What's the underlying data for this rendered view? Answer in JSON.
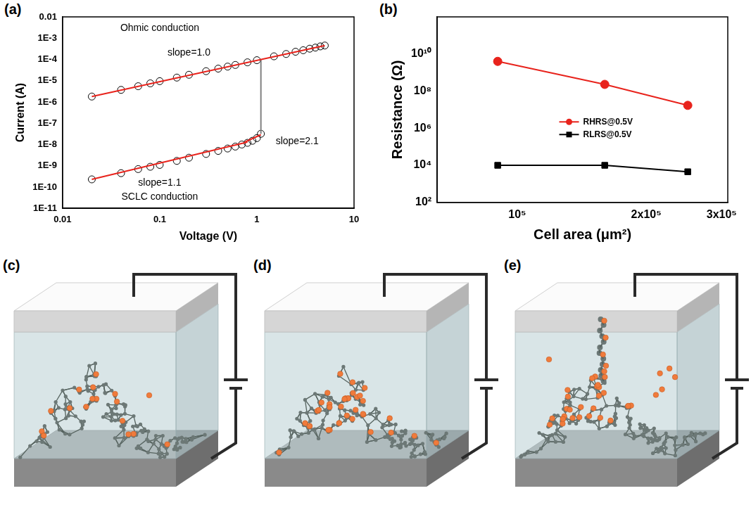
{
  "chart_data": [
    {
      "panel": "(a)",
      "type": "scatter",
      "x_label": "Voltage (V)",
      "y_label": "Current (A)",
      "log": true,
      "grid": false,
      "xlim": [
        0.01,
        10
      ],
      "xticks": [
        0.01,
        0.1,
        1,
        10
      ],
      "ylim": [
        1e-11,
        0.01
      ],
      "yticks": [
        {
          "value": 1e-11,
          "label": "1E-11"
        },
        {
          "value": 1e-10,
          "label": "1E-10"
        },
        {
          "value": 1e-09,
          "label": "1E-9"
        },
        {
          "value": 1e-08,
          "label": "1E-8"
        },
        {
          "value": 1e-07,
          "label": "1E-7"
        },
        {
          "value": 1e-06,
          "label": "1E-6"
        },
        {
          "value": 1e-05,
          "label": "1E-5"
        },
        {
          "value": 0.0001,
          "label": "1E-4"
        },
        {
          "value": 0.001,
          "label": "1E-3"
        },
        0.01
      ],
      "series": [
        {
          "type": "scatter",
          "marker": "circle-open",
          "color": "#000000",
          "x": [
            0.02,
            0.04,
            0.06,
            0.08,
            0.1,
            0.15,
            0.2,
            0.3,
            0.4,
            0.5,
            0.6,
            0.8,
            1,
            1.5,
            2,
            2.5,
            3,
            3.5,
            4,
            4.5,
            5
          ],
          "values": [
            1.8e-06,
            3.7e-06,
            5.5e-06,
            7.5e-06,
            9.5e-06,
            1.4e-05,
            1.9e-05,
            2.8e-05,
            3.7e-05,
            4.6e-05,
            5.5e-05,
            7.3e-05,
            9.2e-05,
            0.00014,
            0.00018,
            0.00023,
            0.00027,
            0.00032,
            0.00036,
            0.00041,
            0.00045
          ]
        },
        {
          "type": "scatter",
          "marker": "circle-open",
          "color": "#000000",
          "x": [
            0.02,
            0.04,
            0.06,
            0.08,
            0.1,
            0.15,
            0.2,
            0.3,
            0.4,
            0.5,
            0.6,
            0.7,
            0.8,
            0.9,
            1,
            1.1
          ],
          "values": [
            2.3e-10,
            4.5e-10,
            7e-10,
            9e-10,
            1.1e-09,
            1.7e-09,
            2.4e-09,
            3.6e-09,
            5e-09,
            6.5e-09,
            8e-09,
            1e-08,
            1.2e-08,
            1.5e-08,
            2e-08,
            3.2e-08
          ]
        },
        {
          "type": "line",
          "marker": "none",
          "line_style": "solid",
          "color": "#e8231c",
          "x": [
            0.02,
            5
          ],
          "values": [
            1.8e-06,
            0.00045
          ]
        },
        {
          "type": "line",
          "marker": "none",
          "line_style": "solid",
          "color": "#e8231c",
          "x": [
            0.02,
            0.8
          ],
          "values": [
            2.3e-10,
            1.3e-08
          ]
        },
        {
          "type": "line",
          "marker": "none",
          "line_style": "solid",
          "color": "#e8231c",
          "x": [
            0.75,
            1.1
          ],
          "values": [
            1.3e-08,
            2.9e-08
          ]
        },
        {
          "type": "line",
          "marker": "none",
          "line_style": "solid",
          "color": "#808080",
          "x": [
            1.1,
            1.1
          ],
          "values": [
            3.2e-08,
            0.0001
          ]
        }
      ],
      "annotations": [
        {
          "text": "Ohmic conduction",
          "x": 0.1,
          "y": 0.003
        },
        {
          "text": "slope=1.0",
          "x": 0.2,
          "y": 0.0002
        },
        {
          "text": "slope=2.1",
          "x": 2.6,
          "y": 1.4e-08
        },
        {
          "text": "slope=1.1",
          "x": 0.1,
          "y": 1.6e-10
        },
        {
          "text": "SCLC conduction",
          "x": 0.1,
          "y": 3.5e-11
        }
      ]
    },
    {
      "panel": "(b)",
      "type": "line",
      "x_label": "Cell area (μm²)",
      "y_label": "Resistance (Ω)",
      "log": true,
      "grid": false,
      "legend": "center",
      "xlim": [
        65000,
        310000
      ],
      "xticks": [
        {
          "value": 100000,
          "label": "10⁵"
        },
        {
          "value": 200000,
          "label": "2x10⁵"
        },
        {
          "value": 300000,
          "label": "3x10⁵"
        }
      ],
      "ylim": [
        100,
        1000000000000
      ],
      "yticks": [
        {
          "value": 100,
          "label": "10²"
        },
        {
          "value": 10000,
          "label": "10⁴"
        },
        {
          "value": 1000000,
          "label": "10⁶"
        },
        {
          "value": 100000000,
          "label": "10⁸"
        },
        {
          "value": 10000000000,
          "label": "10¹⁰"
        }
      ],
      "series": [
        {
          "name": "RHRS@0.5V",
          "color": "#e8231c",
          "marker": "circle",
          "line_style": "solid",
          "x": [
            90000,
            160000,
            250000
          ],
          "values": [
            4000000000,
            230000000,
            17000000
          ]
        },
        {
          "name": "RLRS@0.5V",
          "color": "#000000",
          "marker": "square",
          "line_style": "solid",
          "x": [
            90000,
            160000,
            250000
          ],
          "values": [
            10000,
            10000,
            4500
          ]
        }
      ]
    }
  ],
  "diagrams": [
    {
      "label": "(c)"
    },
    {
      "label": "(d)"
    },
    {
      "label": "(e)"
    }
  ]
}
